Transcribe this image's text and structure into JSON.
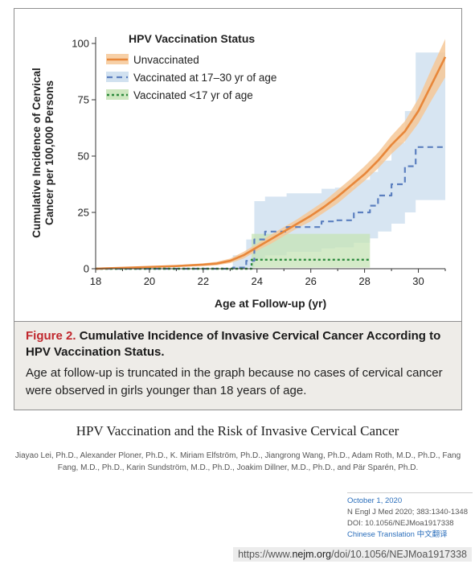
{
  "figure": {
    "caption_label": "Figure 2.",
    "caption_title": "Cumulative Incidence of Invasive Cervical Cancer According to HPV Vaccination Status.",
    "caption_text": "Age at follow-up is truncated in the graph because no cases of cervical cancer were observed in girls younger than 18 years of age."
  },
  "paper": {
    "title": "HPV Vaccination and the Risk of Invasive Cervical Cancer",
    "authors": "Jiayao Lei, Ph.D., Alexander Ploner, Ph.D., K. Miriam Elfström, Ph.D., Jiangrong Wang, Ph.D., Adam Roth, M.D., Ph.D., Fang Fang, M.D., Ph.D., Karin Sundström, M.D., Ph.D., Joakim Dillner, M.D., Ph.D., and Pär Sparén, Ph.D.",
    "date": "October 1, 2020",
    "citation": "N Engl J Med 2020; 383:1340-1348",
    "doi": "DOI: 10.1056/NEJMoa1917338",
    "translation_link": "Chinese Translation 中文翻译"
  },
  "url": {
    "prefix": "https://www.",
    "domain": "nejm.org",
    "path": "/doi/10.1056/NEJMoa1917338"
  },
  "colors": {
    "unvaccinated": "#e8873a",
    "unvaccinated_band": "#f6c898",
    "vacc_17_30": "#5b7fbf",
    "vacc_17_30_band": "#c9dced",
    "vacc_under17": "#2e8b3e",
    "vacc_under17_band": "#c6e3b5",
    "caption_red": "#c0272d"
  },
  "chart_data": {
    "type": "line",
    "xlabel": "Age at Follow-up (yr)",
    "ylabel": "Cumulative Incidence of Cervical Cancer per 100,000 Persons",
    "ylabel_lines": [
      "Cumulative Incidence of Cervical",
      "Cancer per 100,000 Persons"
    ],
    "xlim": [
      18,
      31
    ],
    "ylim": [
      0,
      100
    ],
    "xticks": [
      18,
      20,
      22,
      24,
      26,
      28,
      30
    ],
    "yticks": [
      0,
      25,
      50,
      75,
      100
    ],
    "grid": false,
    "legend": {
      "title": "HPV Vaccination Status",
      "placement": "top-left"
    },
    "series": [
      {
        "name": "Unvaccinated",
        "style": "solid",
        "x": [
          18,
          19,
          20,
          21,
          22,
          22.5,
          23,
          23.5,
          24,
          24.5,
          25,
          25.5,
          26,
          26.5,
          27,
          27.5,
          28,
          28.5,
          29,
          29.5,
          30,
          30.5,
          31
        ],
        "y": [
          0,
          0.4,
          0.8,
          1.2,
          1.8,
          2.3,
          3.5,
          6,
          9.5,
          13,
          16.5,
          20,
          23.5,
          27.5,
          32,
          37,
          42,
          48,
          55,
          61,
          70,
          82,
          94
        ],
        "lower": [
          0,
          0.2,
          0.5,
          0.8,
          1.2,
          1.5,
          2.5,
          4.5,
          8,
          11,
          14.5,
          18,
          21,
          25,
          29,
          34,
          39,
          44.5,
          51,
          56.5,
          64.5,
          75,
          85
        ],
        "upper": [
          0,
          0.6,
          1.1,
          1.6,
          2.4,
          3.1,
          4.5,
          7.5,
          11,
          15,
          18.5,
          22,
          26,
          30,
          35,
          40,
          45.5,
          51.5,
          59,
          65.5,
          75.5,
          89,
          102
        ]
      },
      {
        "name": "Vaccinated at 17–30 yr of age",
        "style": "dashed",
        "x": [
          18,
          22.6,
          23.1,
          23.6,
          23.9,
          24.3,
          25.1,
          26.4,
          26.9,
          27.6,
          28.2,
          28.5,
          29.0,
          29.5,
          29.9,
          31
        ],
        "y": [
          0,
          0,
          0.5,
          3.5,
          13,
          16.5,
          18.5,
          21,
          21.5,
          25,
          28,
          32.5,
          37.5,
          45.5,
          54,
          54
        ],
        "lower": [
          0,
          0,
          0,
          0.5,
          4,
          6,
          7.5,
          9,
          9.5,
          11.5,
          13.5,
          16.5,
          20,
          25,
          30.5,
          30.5
        ],
        "upper": [
          0,
          0,
          6,
          13,
          30,
          32,
          33.5,
          35.5,
          36,
          39.5,
          43,
          48,
          56,
          70,
          96,
          96
        ]
      },
      {
        "name": "Vaccinated <17 yr of age",
        "style": "dotted",
        "x": [
          18,
          23.8,
          28.2
        ],
        "y": [
          0,
          4,
          4
        ],
        "lower": [
          0,
          0.5,
          0.5
        ],
        "upper": [
          0,
          15.5,
          15.5
        ]
      }
    ]
  }
}
